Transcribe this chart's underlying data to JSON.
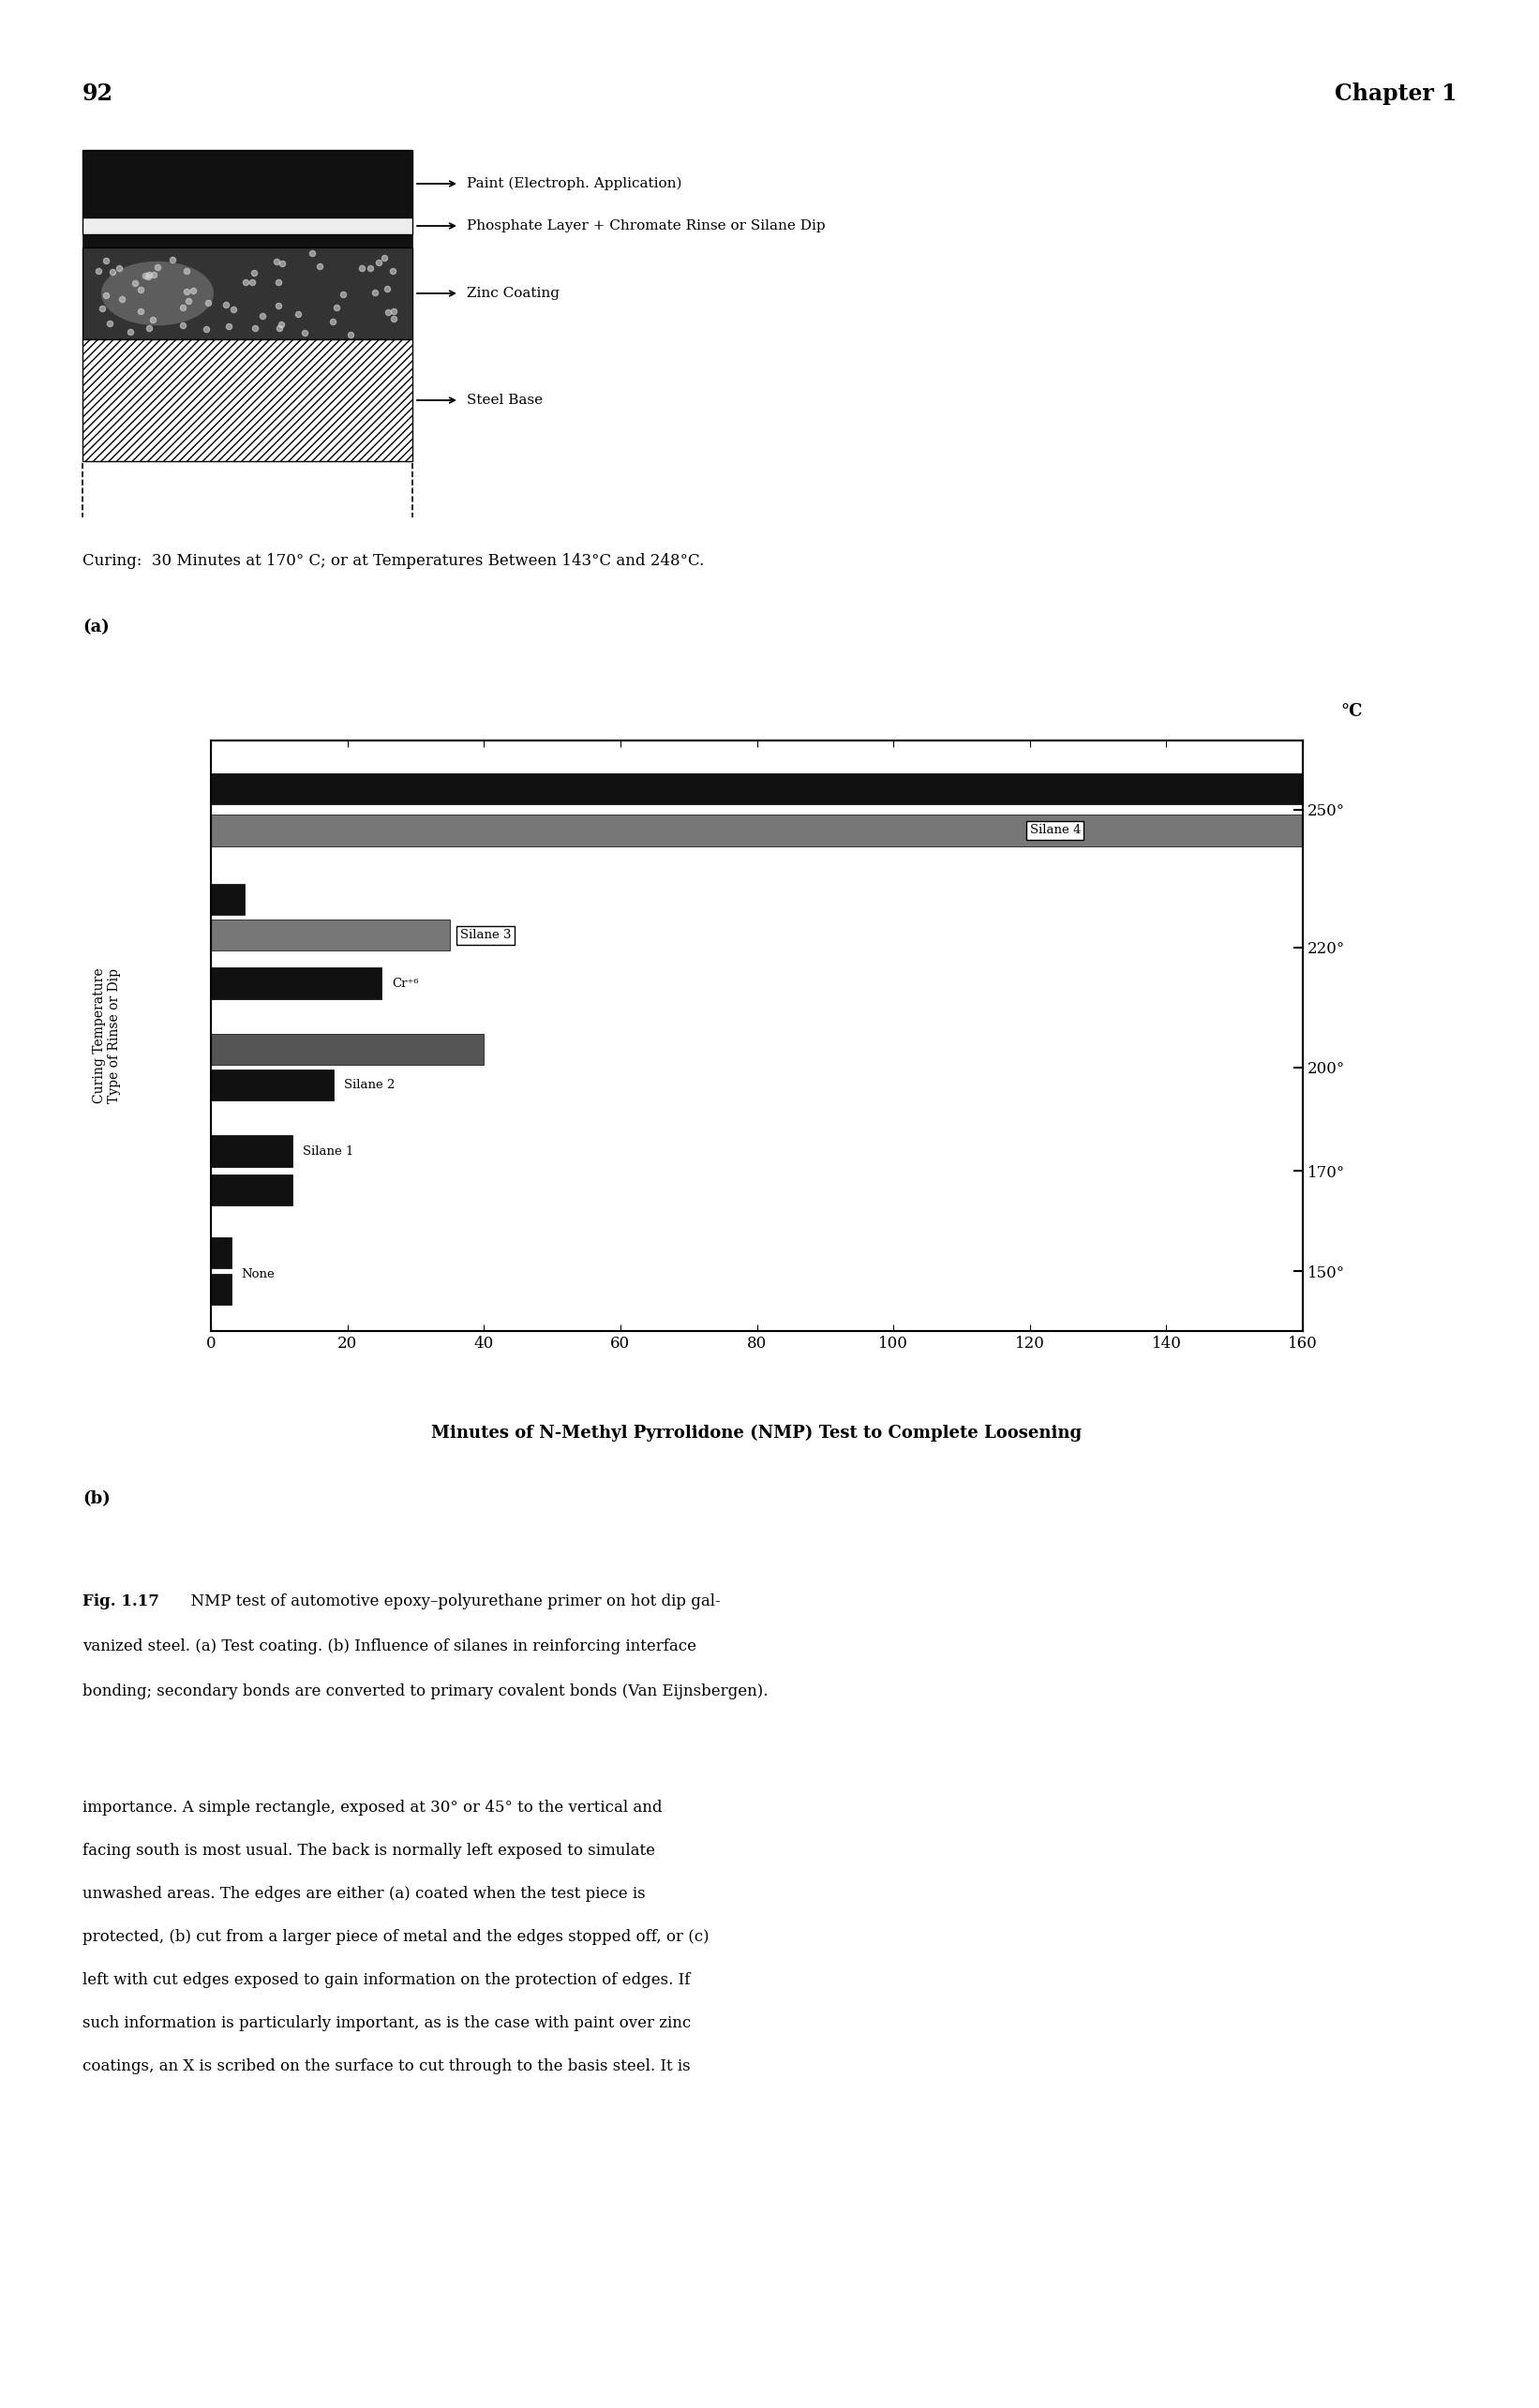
{
  "page_number": "92",
  "chapter": "Chapter 1",
  "layer_labels": [
    "Paint (Electroph. Application)",
    "Phosphate Layer + Chromate Rinse or Silane Dip",
    "Zinc Coating",
    "Steel Base"
  ],
  "curing_text": "Curing:  30 Minutes at 170° C; or at Temperatures Between 143°C and 248°C.",
  "label_a": "(a)",
  "label_b": "(b)",
  "right_axis_labels": [
    "150°",
    "170°",
    "200°",
    "220°",
    "250°"
  ],
  "xlim": [
    0,
    160
  ],
  "xlabel": "Minutes of N-Methyl Pyrrolidone (NMP) Test to Complete Loosening",
  "ylabel_line1": "Curing Temperature",
  "ylabel_line2": "Type of Rinse or Dip",
  "celsius_label": "°C",
  "fig_caption_bold": "Fig. 1.17",
  "fig_caption_rest": "  NMP test of automotive epoxy–polyurethane primer on hot dip gal-\nvanized steel. (a) Test coating. (b) Influence of silanes in reinforcing interface\nbonding; secondary bonds are converted to primary covalent bonds (Van Eijnsbergen).",
  "body_text_lines": [
    "importance. A simple rectangle, exposed at 30° or 45° to the vertical and",
    "facing south is most usual. The back is normally left exposed to simulate",
    "unwashed areas. The edges are either (a) coated when the test piece is",
    "protected, (b) cut from a larger piece of metal and the edges stopped off, or (c)",
    "left with cut edges exposed to gain information on the protection of edges. If",
    "such information is particularly important, as is the case with paint over zinc",
    "coatings, an X is scribed on the surface to cut through to the basis steel. It is"
  ]
}
